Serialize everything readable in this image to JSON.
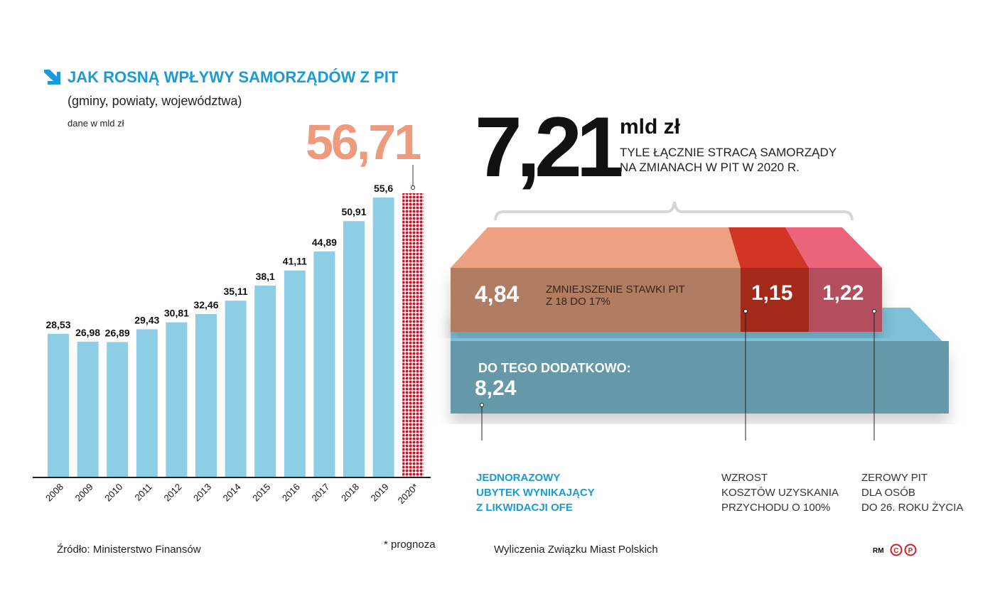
{
  "header": {
    "title": "JAK ROSNĄ WPŁYWY  SAMORZĄDÓW Z PIT",
    "subtitle": "(gminy, powiaty, województwa)",
    "unit": "dane w mld zł"
  },
  "chart_data": {
    "type": "bar",
    "title": "JAK ROSNĄ WPŁYWY SAMORZĄDÓW Z PIT",
    "categories": [
      "2008",
      "2009",
      "2010",
      "2011",
      "2012",
      "2013",
      "2014",
      "2015",
      "2016",
      "2017",
      "2018",
      "2019",
      "2020*"
    ],
    "values": [
      28.53,
      26.98,
      26.89,
      29.43,
      30.81,
      32.46,
      35.11,
      38.1,
      41.11,
      44.89,
      50.91,
      55.6,
      56.71
    ],
    "labels": [
      "28,53",
      "26,98",
      "26,89",
      "29,43",
      "30,81",
      "32,46",
      "35,11",
      "38,1",
      "41,11",
      "44,89",
      "50,91",
      "55,6",
      "56,71"
    ],
    "forecast_index": 12,
    "ylim": [
      0,
      60
    ],
    "colors": {
      "bar": "#8ecde6",
      "forecast": "#c0182d",
      "highlight": "#ee9a7c"
    }
  },
  "summary": {
    "total": "7,21",
    "unit": "mld zł",
    "desc1": "TYLE ŁĄCZNIE STRACĄ SAMORZĄDY",
    "desc2": "NA ZMIANACH W PIT W 2020 R."
  },
  "losses": [
    {
      "value": "4,84",
      "label1": "ZMNIEJSZENIE STAWKI PIT",
      "label2": "Z 18 DO 17%"
    },
    {
      "value": "1,15",
      "callout": [
        "WZROST",
        "KOSZTÓW UZYSKANIA",
        "PRZYCHODU O 100%"
      ]
    },
    {
      "value": "1,22",
      "callout": [
        "ZEROWY PIT",
        "DLA OSÓB",
        "DO 26. ROKU ŻYCIA"
      ]
    }
  ],
  "extra": {
    "label": "DO TEGO DODATKOWO:",
    "value": "8,24",
    "callout": [
      "JEDNORAZOWY",
      "UBYTEK WYNIKAJĄCY",
      "Z LIKWIDACJI OFE"
    ]
  },
  "footer": {
    "source": "Źródło: Ministerstwo Finansów",
    "note": "* prognoza",
    "calc": "Wyliczenia Związku Miast Polskich",
    "author": "RM",
    "copy": "©",
    "p": "P"
  }
}
